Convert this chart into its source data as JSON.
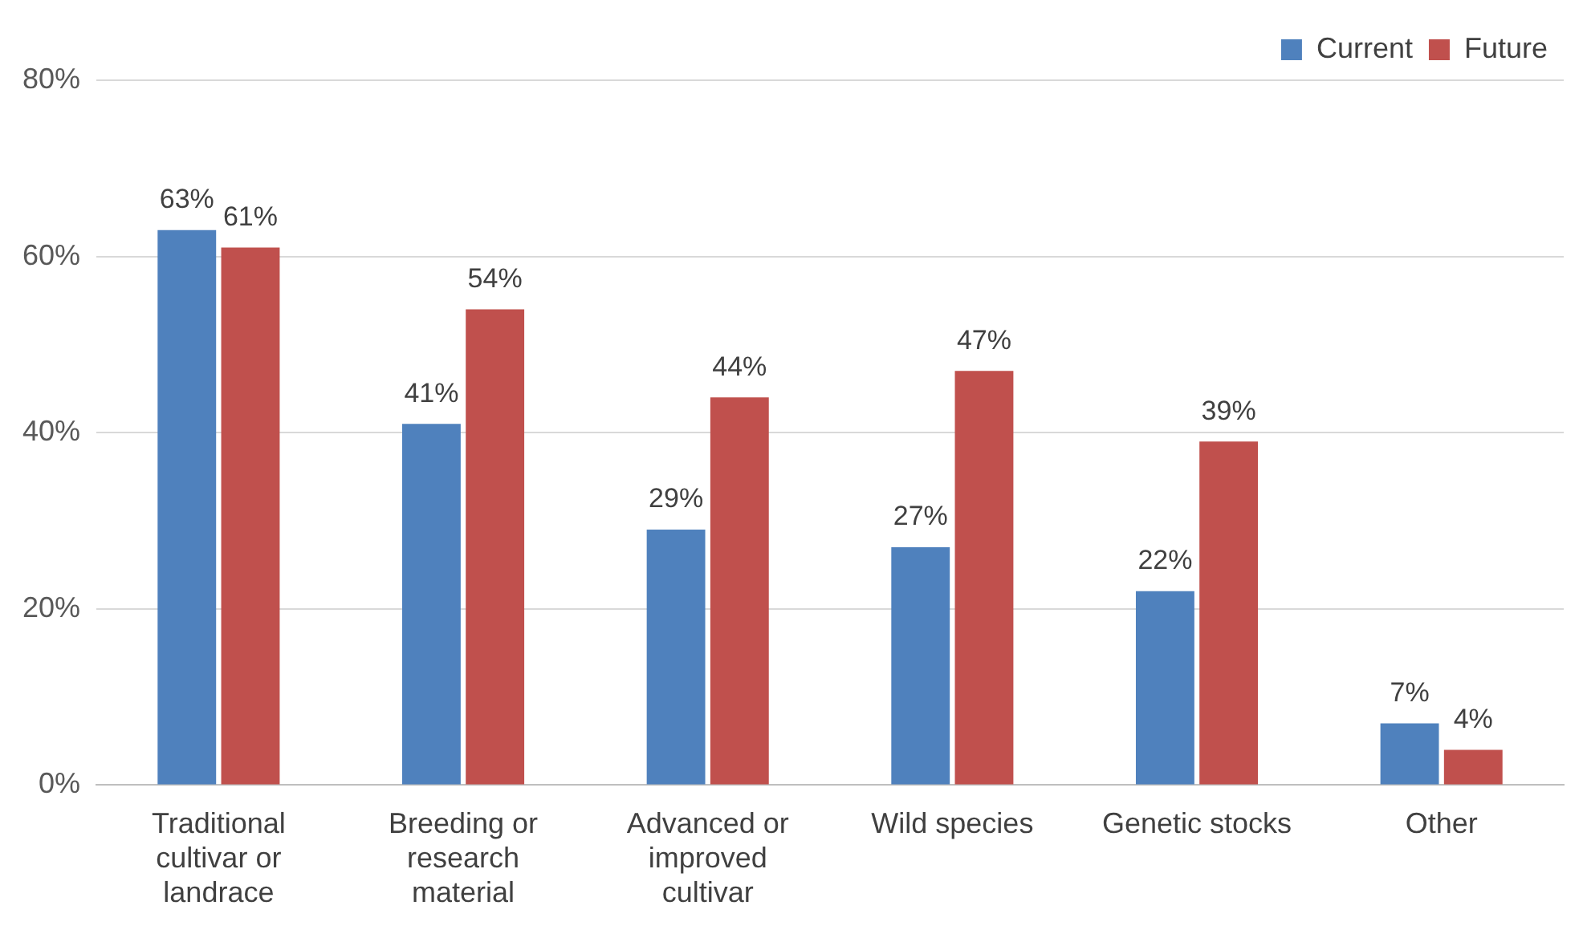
{
  "chart_data": {
    "type": "bar",
    "categories": [
      "Traditional cultivar or landrace",
      "Breeding or research material",
      "Advanced or improved cultivar",
      "Wild species",
      "Genetic stocks",
      "Other"
    ],
    "series": [
      {
        "name": "Current",
        "color": "#4f81bd",
        "values": [
          63,
          41,
          29,
          27,
          22,
          7
        ],
        "value_labels": [
          "63%",
          "41%",
          "29%",
          "27%",
          "22%",
          "7%"
        ]
      },
      {
        "name": "Future",
        "color": "#c0504d",
        "values": [
          61,
          54,
          44,
          47,
          39,
          4
        ],
        "value_labels": [
          "61%",
          "54%",
          "44%",
          "47%",
          "39%",
          "4%"
        ]
      }
    ],
    "ylim": [
      0,
      80
    ],
    "yticks": [
      {
        "value": 0,
        "label": "0%"
      },
      {
        "value": 20,
        "label": "20%"
      },
      {
        "value": 40,
        "label": "40%"
      },
      {
        "value": 60,
        "label": "60%"
      },
      {
        "value": 80,
        "label": "80%"
      }
    ],
    "grid": "y",
    "legend": "top right"
  }
}
